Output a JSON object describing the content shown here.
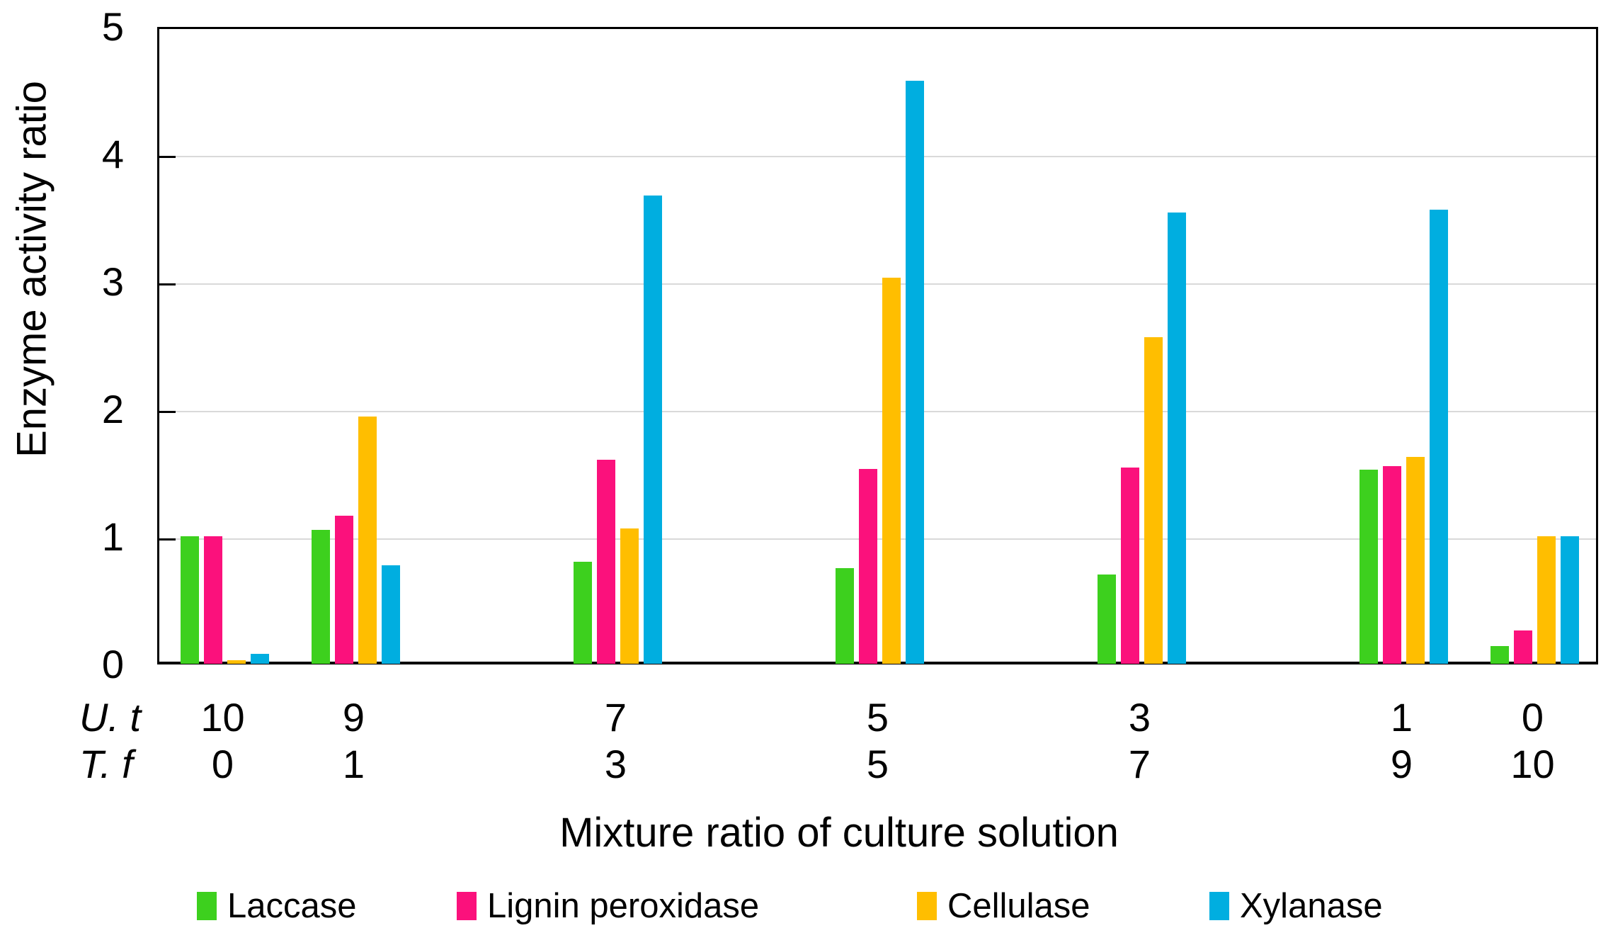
{
  "chart_data": {
    "type": "bar",
    "title": "",
    "xlabel": "Mixture ratio of culture solution",
    "ylabel": "Enzyme activity ratio",
    "ylim": [
      0,
      5
    ],
    "yticks": [
      0,
      1,
      2,
      3,
      4,
      5
    ],
    "grid": true,
    "legend_position": "bottom",
    "x_axis_rows": [
      {
        "label": "U. t",
        "values": [
          "10",
          "9",
          "7",
          "5",
          "3",
          "1",
          "0"
        ]
      },
      {
        "label": "T. f",
        "values": [
          "0",
          "1",
          "3",
          "5",
          "7",
          "9",
          "10"
        ]
      }
    ],
    "categories": [
      "10:0",
      "9:1",
      "7:3",
      "5:5",
      "3:7",
      "1:9",
      "0:10"
    ],
    "series": [
      {
        "name": "Laccase",
        "color": "#3dd01e",
        "values": [
          1.0,
          1.05,
          0.8,
          0.75,
          0.7,
          1.52,
          0.14
        ]
      },
      {
        "name": "Lignin peroxidase",
        "color": "#fb117c",
        "values": [
          1.0,
          1.16,
          1.6,
          1.53,
          1.54,
          1.55,
          0.26
        ]
      },
      {
        "name": "Cellulase",
        "color": "#ffbe00",
        "values": [
          0.03,
          1.94,
          1.06,
          3.03,
          2.56,
          1.62,
          1.0
        ]
      },
      {
        "name": "Xylanase",
        "color": "#00aee0",
        "values": [
          0.08,
          0.77,
          3.67,
          4.57,
          3.54,
          3.56,
          1.0
        ]
      }
    ]
  },
  "colors": {
    "gridline": "#d9d9d9",
    "axis": "#000000",
    "text": "#000000",
    "background": "#ffffff"
  }
}
